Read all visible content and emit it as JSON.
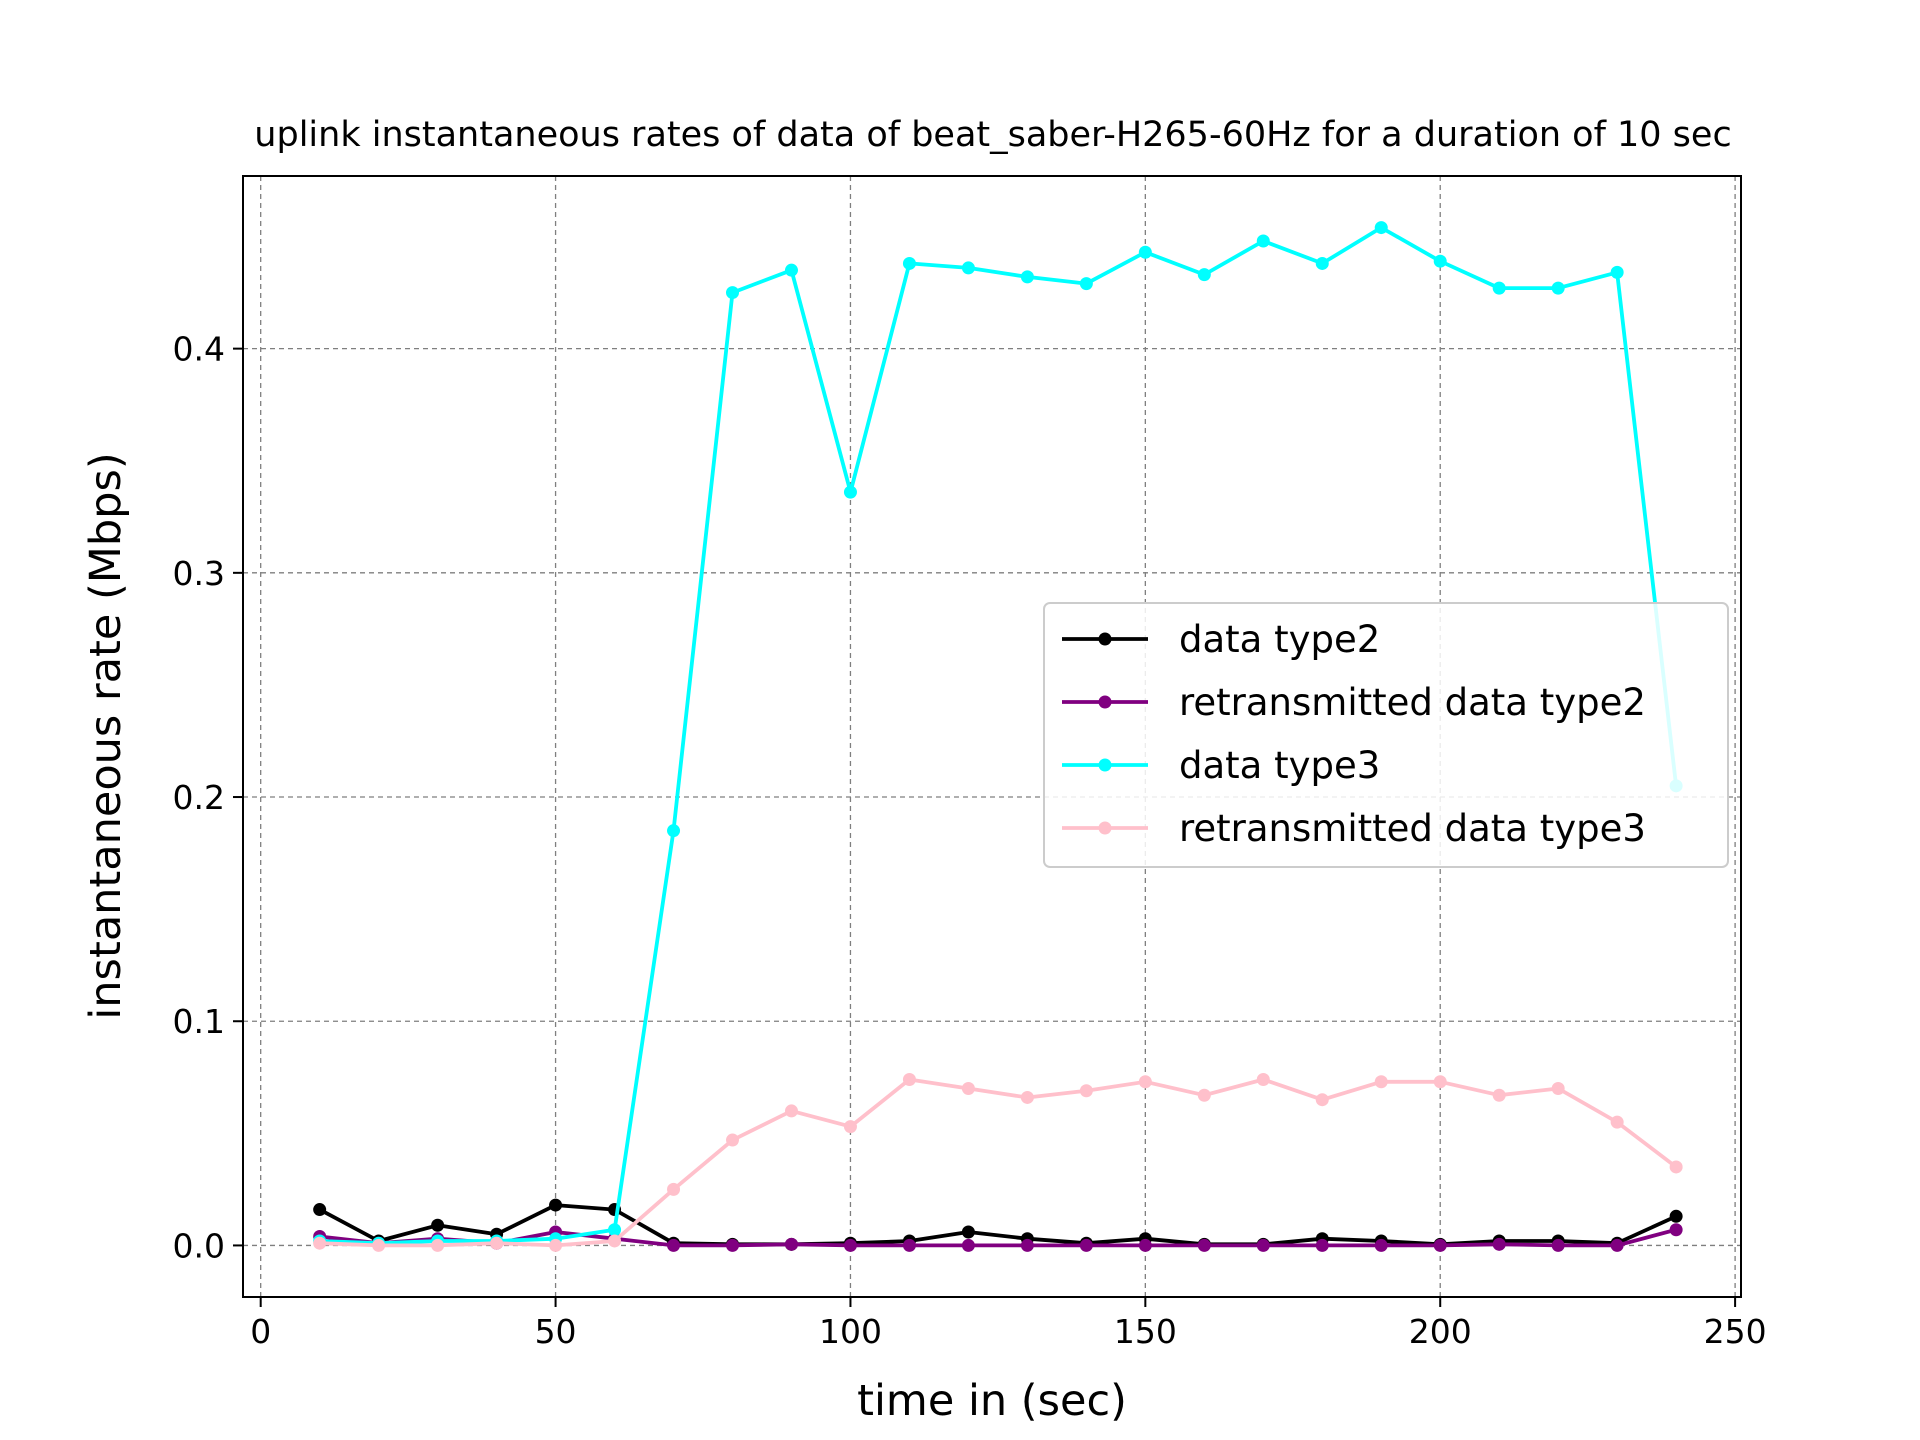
{
  "chart_data": {
    "type": "line",
    "title": "uplink instantaneous rates of data of beat_saber-H265-60Hz for a duration of 10 sec",
    "xlabel": "time in (sec)",
    "ylabel": "instantaneous rate (Mbps)",
    "xlim": [
      -3,
      251
    ],
    "ylim": [
      -0.023,
      0.477
    ],
    "xticks": [
      0,
      50,
      100,
      150,
      200,
      250
    ],
    "yticks": [
      0.0,
      0.1,
      0.2,
      0.3,
      0.4
    ],
    "xtick_labels": [
      "0",
      "50",
      "100",
      "150",
      "200",
      "250"
    ],
    "ytick_labels": [
      "0.0",
      "0.1",
      "0.2",
      "0.3",
      "0.4"
    ],
    "grid": true,
    "legend_position": "center-right",
    "x": [
      10,
      20,
      30,
      40,
      50,
      60,
      70,
      80,
      90,
      100,
      110,
      120,
      130,
      140,
      150,
      160,
      170,
      180,
      190,
      200,
      210,
      220,
      230,
      240
    ],
    "series": [
      {
        "name": "data type2",
        "color": "#000000",
        "values": [
          0.016,
          0.002,
          0.009,
          0.005,
          0.018,
          0.016,
          0.001,
          0.0005,
          0.0005,
          0.001,
          0.002,
          0.006,
          0.003,
          0.001,
          0.003,
          0.0005,
          0.0005,
          0.003,
          0.002,
          0.0005,
          0.002,
          0.002,
          0.001,
          0.013
        ]
      },
      {
        "name": "retransmitted data type2",
        "color": "#800080",
        "values": [
          0.004,
          0.001,
          0.003,
          0.001,
          0.006,
          0.003,
          0.0,
          0.0,
          0.0005,
          0.0,
          0.0,
          0.0,
          0.0,
          0.0,
          0.0,
          0.0,
          0.0,
          0.0,
          0.0,
          0.0,
          0.0005,
          0.0,
          0.0,
          0.007
        ]
      },
      {
        "name": "data type3",
        "color": "#00FFFF",
        "values": [
          0.002,
          0.001,
          0.002,
          0.002,
          0.003,
          0.007,
          0.185,
          0.425,
          0.435,
          0.336,
          0.438,
          0.436,
          0.432,
          0.429,
          0.443,
          0.433,
          0.448,
          0.438,
          0.454,
          0.439,
          0.427,
          0.427,
          0.434,
          0.205
        ]
      },
      {
        "name": "retransmitted data type3",
        "color": "#FFC0CB",
        "values": [
          0.001,
          0.0,
          0.0,
          0.001,
          0.0,
          0.002,
          0.025,
          0.047,
          0.06,
          0.053,
          0.074,
          0.07,
          0.066,
          0.069,
          0.073,
          0.067,
          0.074,
          0.065,
          0.073,
          0.073,
          0.067,
          0.07,
          0.055,
          0.035
        ]
      }
    ]
  }
}
